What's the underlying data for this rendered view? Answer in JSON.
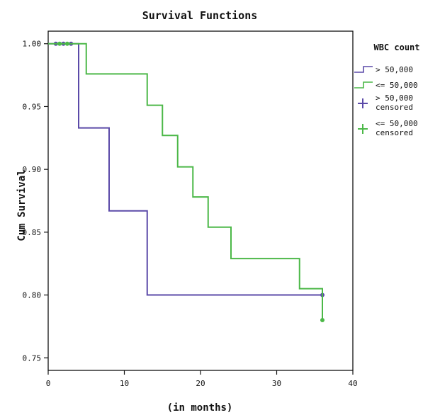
{
  "chart_data": {
    "type": "line",
    "subtype": "step",
    "title": "Survival Functions",
    "xlabel": "(in months)",
    "ylabel": "Cum Survival",
    "xlim": [
      0,
      40
    ],
    "ylim": [
      0.74,
      1.01
    ],
    "xticks": [
      0,
      10,
      20,
      30,
      40
    ],
    "yticks": [
      0.75,
      0.8,
      0.85,
      0.9,
      0.95,
      1.0
    ],
    "ytick_labels": [
      "0.75",
      "0.80",
      "0.85",
      "0.90",
      "0.95",
      "1.00"
    ],
    "grid": false,
    "legend": {
      "title": "WBC count",
      "placement": "right-top",
      "entries": [
        {
          "label": "> 50,000",
          "kind": "line",
          "series": 0
        },
        {
          "label": "<= 50,000",
          "kind": "line",
          "series": 1
        },
        {
          "label": "> 50,000 censored",
          "kind": "censor",
          "series": 0
        },
        {
          "label": "<= 50,000 censored",
          "kind": "censor",
          "series": 1
        }
      ]
    },
    "series": [
      {
        "name": "> 50,000",
        "color": "#5b4aa8",
        "x": [
          0,
          4,
          8,
          13,
          36
        ],
        "y": [
          1.0,
          0.933,
          0.867,
          0.8,
          0.8
        ],
        "censored_x": [
          1,
          2,
          3,
          36
        ],
        "censored_y": [
          1.0,
          1.0,
          1.0,
          0.8
        ]
      },
      {
        "name": "<= 50,000",
        "color": "#4cb848",
        "x": [
          0,
          5,
          13,
          15,
          17,
          19,
          21,
          24,
          33,
          36
        ],
        "y": [
          1.0,
          0.976,
          0.951,
          0.927,
          0.902,
          0.878,
          0.854,
          0.829,
          0.805,
          0.78
        ],
        "censored_x": [
          1.5,
          2.5,
          36
        ],
        "censored_y": [
          1.0,
          1.0,
          0.78
        ]
      }
    ]
  }
}
